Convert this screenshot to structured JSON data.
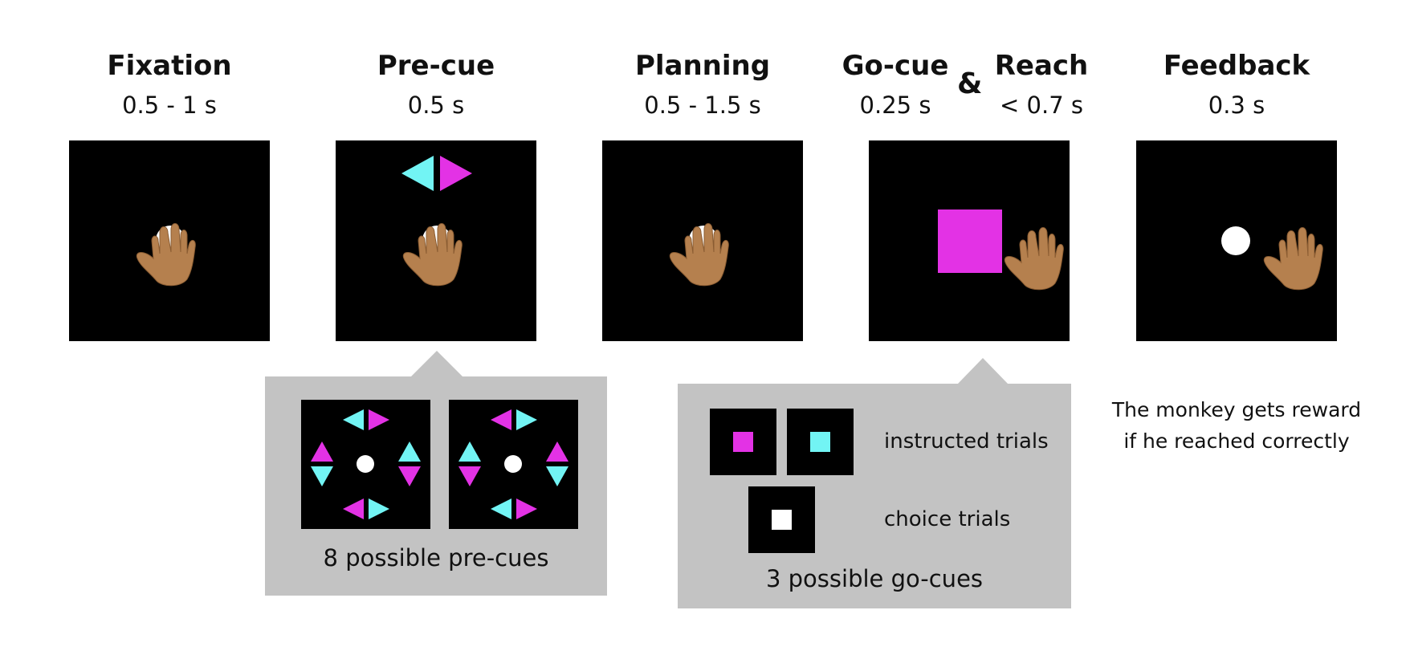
{
  "colors": {
    "magenta": "#e332e5",
    "cyan": "#72f4f4",
    "hand": "#b5804e",
    "screen": "#000000",
    "panel": "#c3c3c3",
    "target": "#ffffff"
  },
  "stages": [
    {
      "title": "Fixation",
      "time": "0.5 - 1 s"
    },
    {
      "title": "Pre-cue",
      "time": "0.5 s"
    },
    {
      "title": "Planning",
      "time": "0.5 - 1.5 s"
    },
    {
      "title": "Go-cue",
      "time": "0.25 s"
    },
    {
      "title": "Reach",
      "time": "< 0.7 s"
    },
    {
      "title": "Feedback",
      "time": "0.3 s"
    }
  ],
  "ampersand": "&",
  "precue_panel": {
    "caption": "8 possible pre-cues"
  },
  "gocue_panel": {
    "instructed_label": "instructed trials",
    "choice_label": "choice trials",
    "caption": "3 possible go-cues"
  },
  "feedback_note": {
    "line1": "The monkey gets reward",
    "line2": "if he reached correctly"
  },
  "icons": [
    "hand-icon",
    "fixation-target-icon",
    "precue-arrow-icon",
    "go-cue-square-icon",
    "reward-target-icon"
  ]
}
